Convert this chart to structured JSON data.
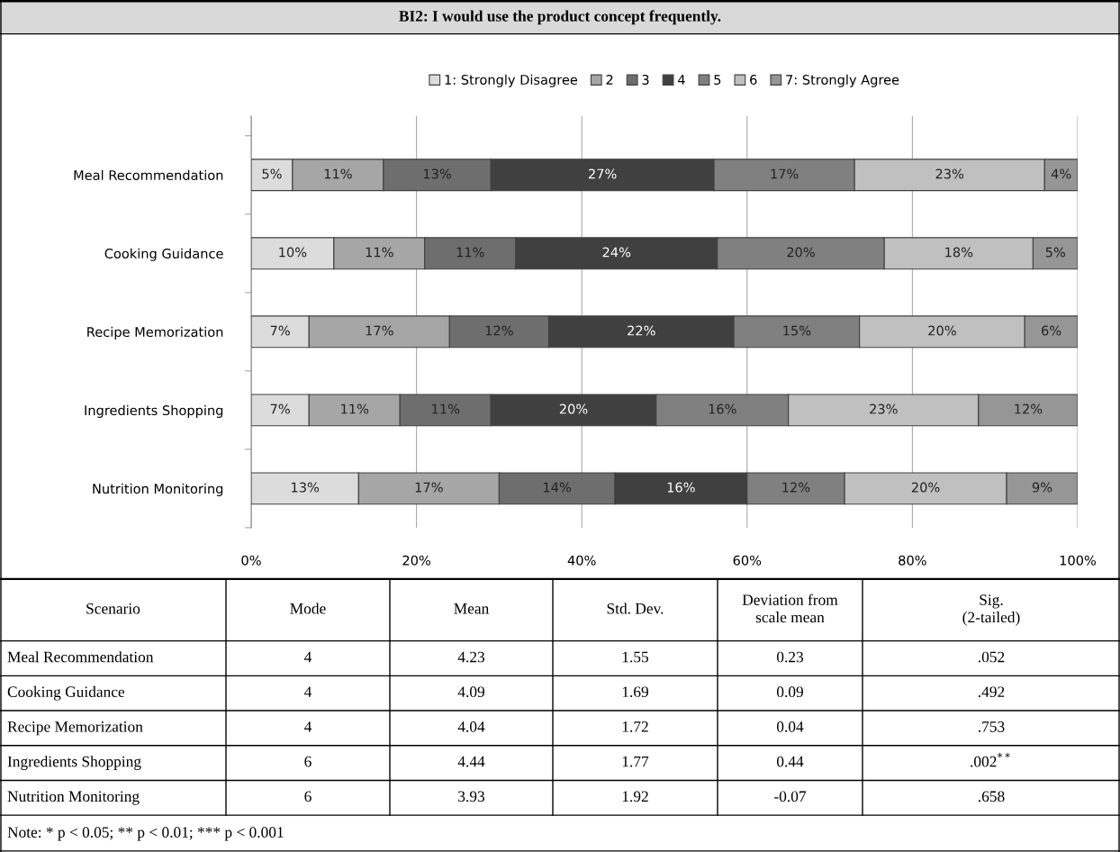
{
  "chart_data": {
    "type": "bar",
    "orientation": "horizontal",
    "stacked": true,
    "title": "BI2: I would use the product concept frequently.",
    "categories": [
      "Meal Recommendation",
      "Cooking Guidance",
      "Recipe Memorization",
      "Ingredients Shopping",
      "Nutrition Monitoring"
    ],
    "series": [
      {
        "name": "1: Strongly Disagree",
        "color": "#dcdcdc",
        "values": [
          5,
          10,
          7,
          7,
          13
        ],
        "value_labels": [
          "5%",
          "10%",
          "7%",
          "7%",
          "13%"
        ]
      },
      {
        "name": "2",
        "color": "#a6a6a6",
        "values": [
          11,
          11,
          17,
          11,
          17
        ],
        "value_labels": [
          "11%",
          "11%",
          "17%",
          "11%",
          "17%"
        ]
      },
      {
        "name": "3",
        "color": "#6e6e6e",
        "values": [
          13,
          11,
          12,
          11,
          14
        ],
        "value_labels": [
          "13%",
          "11%",
          "12%",
          "11%",
          "14%"
        ]
      },
      {
        "name": "4",
        "color": "#404040",
        "values": [
          27,
          24.4,
          22.4,
          20,
          16
        ],
        "value_labels": [
          "27%",
          "24%",
          "22%",
          "20%",
          "16%"
        ]
      },
      {
        "name": "5",
        "color": "#808080",
        "values": [
          17,
          20.2,
          15.2,
          16,
          11.8
        ],
        "value_labels": [
          "17%",
          "20%",
          "15%",
          "16%",
          "12%"
        ]
      },
      {
        "name": "6",
        "color": "#c0c0c0",
        "values": [
          23,
          18,
          20,
          23,
          19.6
        ],
        "value_labels": [
          "23%",
          "18%",
          "20%",
          "23%",
          "20%"
        ]
      },
      {
        "name": "7: Strongly Agree",
        "color": "#969696",
        "values": [
          4,
          5.4,
          6.4,
          12,
          8.6
        ],
        "value_labels": [
          "4%",
          "5%",
          "6%",
          "12%",
          "9%"
        ]
      }
    ],
    "xlim": [
      0,
      100
    ],
    "xticks": [
      {
        "value": 0,
        "label": "0%"
      },
      {
        "value": 20,
        "label": "20%"
      },
      {
        "value": 40,
        "label": "40%"
      },
      {
        "value": 60,
        "label": "60%"
      },
      {
        "value": 80,
        "label": "80%"
      },
      {
        "value": 100,
        "label": "100%"
      }
    ],
    "grid": "x",
    "legend": "top",
    "annotations": [
      "Scenario",
      "Mode",
      "Mean",
      "Std. Dev.",
      "Deviation from\nscale mean",
      "Sig.\n(2-tailed)",
      "Meal Recommendation",
      "4",
      "4.23",
      "1.55",
      "0.23",
      ".052",
      "Cooking Guidance",
      "4",
      "4.09",
      "1.69",
      "0.09",
      ".492",
      "Recipe Memorization",
      "4",
      "4.04",
      "1.72",
      "0.04",
      ".753",
      "Ingredients Shopping",
      "6",
      "4.44",
      "1.77",
      "0.44",
      ".002$^{**}$",
      "Nutrition Monitoring",
      "6",
      "3.93",
      "1.92",
      "-0.07",
      ".658",
      "Note: * p < 0.05; ** p < 0.01; *** p < 0.001"
    ]
  }
}
